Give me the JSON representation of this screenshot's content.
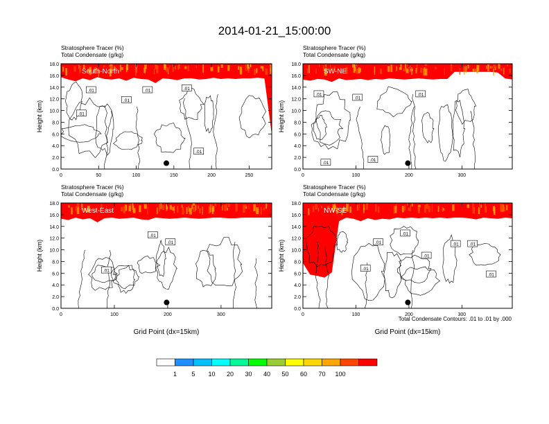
{
  "figure": {
    "title": "2014-01-21_15:00:00",
    "contour_note": "Total Condensate Contours: .01 to .01 by .000",
    "marker_label_text": ".01"
  },
  "colors": {
    "white": "#ffffff",
    "blue": "#1e90ff",
    "light_blue": "#00bfff",
    "cyan": "#00ffff",
    "aqua_green": "#00fa9a",
    "green": "#00ff00",
    "yellow_green": "#9acd32",
    "yellow": "#ffff00",
    "gold": "#ffd700",
    "orange": "#ffa500",
    "orange_red": "#ff4500",
    "red": "#ff0000"
  },
  "colorbar": {
    "labels": [
      "1",
      "5",
      "10",
      "20",
      "30",
      "40",
      "50",
      "60",
      "70",
      "100"
    ],
    "colors": [
      "#ffffff",
      "#1e90ff",
      "#00bfff",
      "#00ffff",
      "#00fa9a",
      "#00ff00",
      "#9acd32",
      "#ffff00",
      "#ffd700",
      "#ffa500",
      "#ff4500",
      "#ff0000"
    ]
  },
  "chart_data": [
    {
      "type": "contour",
      "panel_label": "South-North",
      "title_line1": "Stratosphere Tracer   (%)",
      "title_line2": "Total Condensate   (g/kg)",
      "ylabel": "Height (km)",
      "xlabel": "",
      "xlim": [
        0,
        280
      ],
      "ylim": [
        0,
        18
      ],
      "xticks": [
        "0",
        "50",
        "100",
        "150",
        "200",
        "250"
      ],
      "xtick_values": [
        0,
        50,
        100,
        150,
        200,
        250
      ],
      "yticks": [
        "0.0",
        "2.0",
        "4.0",
        "6.0",
        "8.0",
        "10.0",
        "12.0",
        "14.0",
        "16.0",
        "18.0"
      ],
      "ytick_values": [
        0,
        2,
        4,
        6,
        8,
        10,
        12,
        14,
        16,
        18
      ],
      "tropopause_km": [
        15.8,
        15.4,
        15.1,
        15.6,
        15.3,
        15.8,
        15.5,
        15.4,
        15.6,
        15.2,
        15.7,
        15.5,
        15.4,
        14.8,
        15.6,
        15.5,
        15.3,
        15.6,
        15.6,
        15.4,
        15.5,
        15.7,
        15.5,
        15.6,
        15.5,
        15.6,
        15.6,
        15.7,
        15.6,
        6.0
      ],
      "marker": {
        "x": 140,
        "y": 1.0
      },
      "contour_labels": [
        {
          "x": 40,
          "y": 13.5,
          "text": ".01"
        },
        {
          "x": 27,
          "y": 9.5,
          "text": ".01"
        },
        {
          "x": 87,
          "y": 11.8,
          "text": ".01"
        },
        {
          "x": 115,
          "y": 13.5,
          "text": ".01"
        },
        {
          "x": 167,
          "y": 13.8,
          "text": ".01"
        },
        {
          "x": 183,
          "y": 3.0,
          "text": ".01"
        }
      ]
    },
    {
      "type": "contour",
      "panel_label": "SW-NE",
      "title_line1": "Stratosphere Tracer   (%)",
      "title_line2": "Total Condensate   (g/kg)",
      "ylabel": "Height (km)",
      "xlabel": "",
      "xlim": [
        0,
        395
      ],
      "ylim": [
        0,
        18
      ],
      "xticks": [
        "0",
        "100",
        "200",
        "300"
      ],
      "xtick_values": [
        0,
        100,
        200,
        300
      ],
      "yticks": [
        "0.0",
        "2.0",
        "4.0",
        "6.0",
        "8.0",
        "10.0",
        "12.0",
        "14.0",
        "16.0",
        "18.0"
      ],
      "ytick_values": [
        0,
        2,
        4,
        6,
        8,
        10,
        12,
        14,
        16,
        18
      ],
      "tropopause_km": [
        15.4,
        15.2,
        15.5,
        15.4,
        15.0,
        15.6,
        15.3,
        15.4,
        15.5,
        15.3,
        15.5,
        15.4,
        15.6,
        15.5,
        15.4,
        15.5,
        15.6,
        15.5,
        15.4,
        15.5,
        15.5,
        16.7,
        16.7,
        16.7,
        16.7,
        16.7,
        16.7,
        16.6,
        15.6,
        15.4
      ],
      "marker": {
        "x": 198,
        "y": 1.0
      },
      "contour_labels": [
        {
          "x": 30,
          "y": 12.8,
          "text": ".01"
        },
        {
          "x": 103,
          "y": 12.2,
          "text": ".01"
        },
        {
          "x": 222,
          "y": 12.8,
          "text": ".01"
        },
        {
          "x": 43,
          "y": 1.1,
          "text": ".01"
        },
        {
          "x": 132,
          "y": 1.6,
          "text": ".01"
        }
      ]
    },
    {
      "type": "contour",
      "panel_label": "West-East",
      "title_line1": "Stratosphere Tracer   (%)",
      "title_line2": "Total Condensate   (g/kg)",
      "ylabel": "Height (km)",
      "xlabel": "Grid Point (dx=15km)",
      "xlim": [
        0,
        395
      ],
      "ylim": [
        0,
        18
      ],
      "xticks": [
        "0",
        "100",
        "200",
        "300"
      ],
      "xtick_values": [
        0,
        100,
        200,
        300
      ],
      "yticks": [
        "0.0",
        "2.0",
        "4.0",
        "6.0",
        "8.0",
        "10.0",
        "12.0",
        "14.0",
        "16.0",
        "18.0"
      ],
      "ytick_values": [
        0,
        2,
        4,
        6,
        8,
        10,
        12,
        14,
        16,
        18
      ],
      "tropopause_km": [
        15.4,
        15.2,
        15.6,
        15.3,
        15.5,
        14.8,
        15.5,
        15.6,
        15.4,
        15.5,
        15.6,
        15.3,
        15.2,
        15.6,
        15.5,
        15.4,
        15.5,
        15.6,
        15.5,
        15.4,
        15.5,
        15.6,
        15.6,
        15.5,
        15.5,
        15.6,
        15.6,
        15.6,
        15.6,
        15.6
      ],
      "marker": {
        "x": 198,
        "y": 1.0
      },
      "contour_labels": [
        {
          "x": 172,
          "y": 12.5,
          "text": ".01"
        },
        {
          "x": 205,
          "y": 11.3,
          "text": ".01"
        },
        {
          "x": 85,
          "y": 6.5,
          "text": ".01"
        }
      ]
    },
    {
      "type": "contour",
      "panel_label": "NW-SE",
      "title_line1": "Stratosphere Tracer   (%)",
      "title_line2": "Total Condensate   (g/kg)",
      "ylabel": "Height (km)",
      "xlabel": "Grid Point (dx=15km)",
      "xlim": [
        0,
        395
      ],
      "ylim": [
        0,
        18
      ],
      "xticks": [
        "0",
        "100",
        "200",
        "300"
      ],
      "xtick_values": [
        0,
        100,
        200,
        300
      ],
      "yticks": [
        "0.0",
        "2.0",
        "4.0",
        "6.0",
        "8.0",
        "10.0",
        "12.0",
        "14.0",
        "16.0",
        "18.0"
      ],
      "ytick_values": [
        0,
        2,
        4,
        6,
        8,
        10,
        12,
        14,
        16,
        18
      ],
      "tropopause_km": [
        7.8,
        5.8,
        5.6,
        5.3,
        6.2,
        15.0,
        15.6,
        15.4,
        15.0,
        15.5,
        15.2,
        15.4,
        15.3,
        15.6,
        15.5,
        15.6,
        15.5,
        15.6,
        15.5,
        15.6,
        15.5,
        15.6,
        15.6,
        15.5,
        15.3,
        15.6,
        15.5,
        15.4,
        15.6,
        15.5
      ],
      "marker": {
        "x": 198,
        "y": 1.0
      },
      "contour_labels": [
        {
          "x": 142,
          "y": 11.3,
          "text": ".01"
        },
        {
          "x": 193,
          "y": 12.8,
          "text": ".01"
        },
        {
          "x": 288,
          "y": 11.0,
          "text": ".01"
        },
        {
          "x": 320,
          "y": 11.0,
          "text": ".01"
        },
        {
          "x": 233,
          "y": 9.0,
          "text": ".01"
        },
        {
          "x": 118,
          "y": 6.8,
          "text": ".01"
        },
        {
          "x": 355,
          "y": 5.8,
          "text": ".01"
        }
      ]
    }
  ]
}
